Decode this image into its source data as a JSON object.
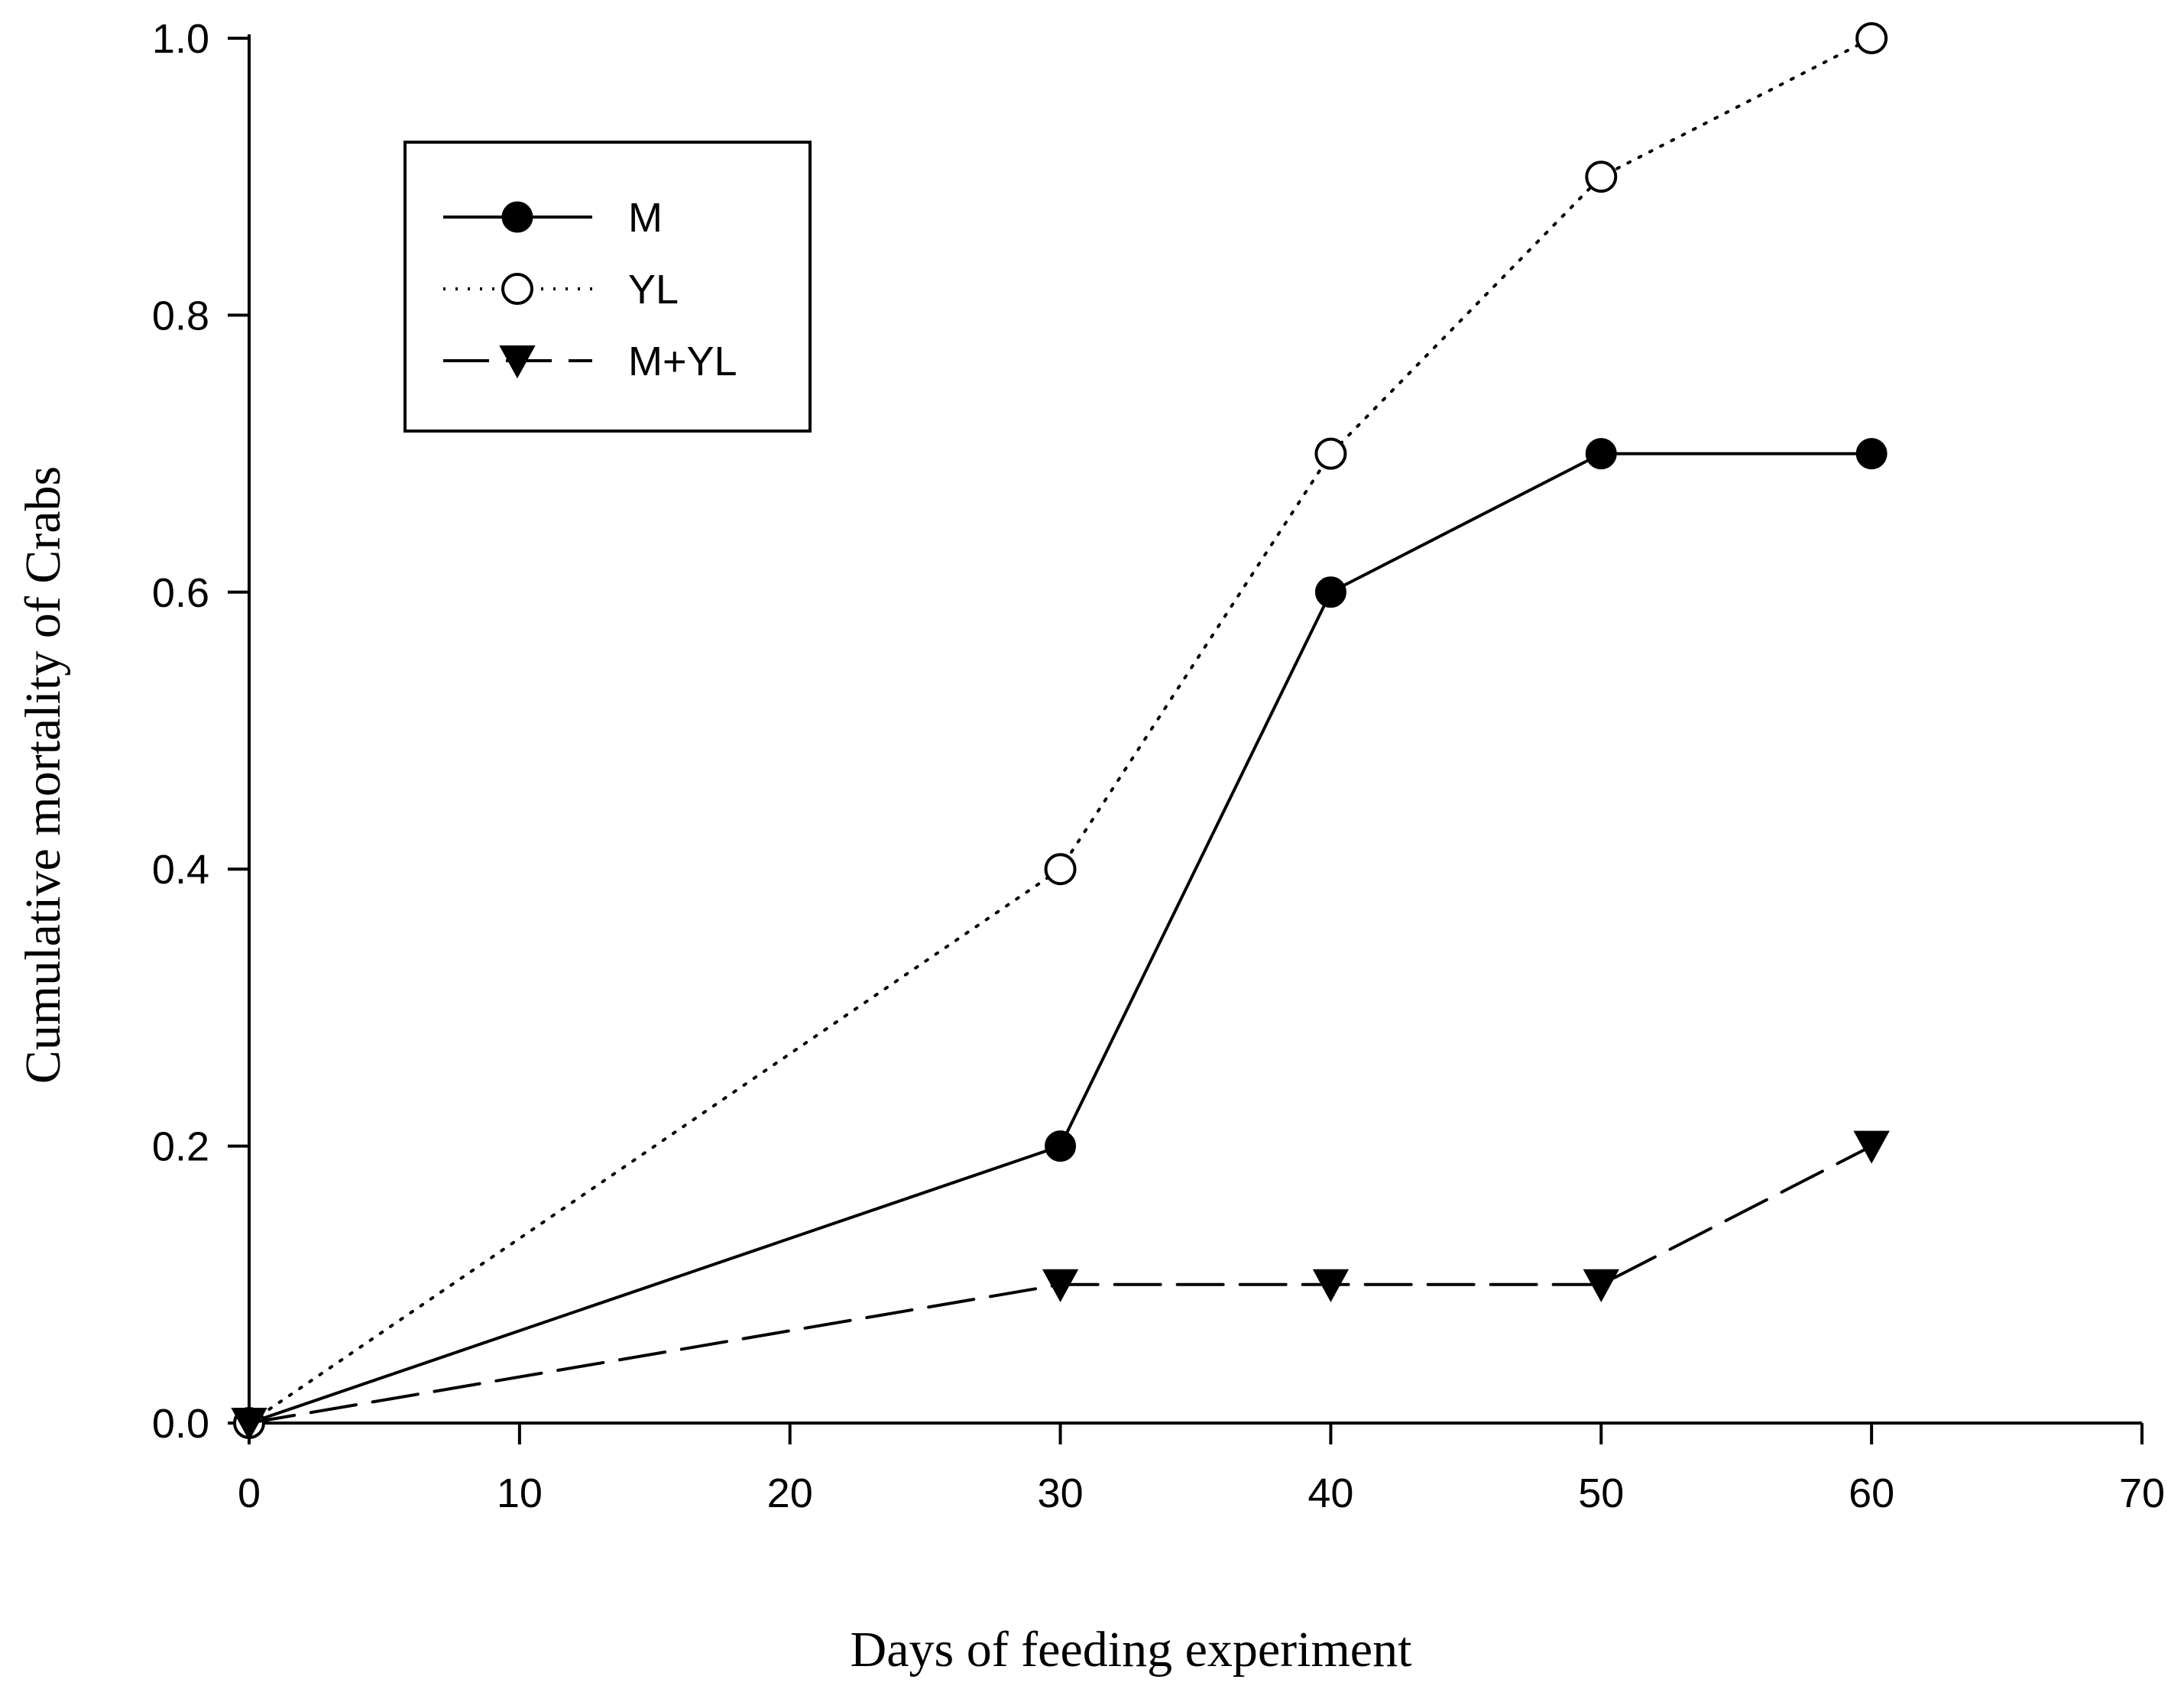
{
  "chart_data": {
    "type": "line",
    "title": "",
    "xlabel": "Days of feeding experiment",
    "ylabel": "Cumulative mortality of Crabs",
    "xlim": [
      0,
      70
    ],
    "ylim": [
      0,
      1.0
    ],
    "xticks": [
      "0",
      "10",
      "20",
      "30",
      "40",
      "50",
      "60",
      "70"
    ],
    "yticks": [
      "0.0",
      "0.2",
      "0.4",
      "0.6",
      "0.8",
      "1.0"
    ],
    "grid": false,
    "legend_position": "top-left",
    "series": [
      {
        "name": "M",
        "line_style": "solid",
        "marker": "filled-circle",
        "x": [
          0,
          30,
          40,
          50,
          60
        ],
        "y": [
          0,
          0.2,
          0.6,
          0.7,
          0.7
        ]
      },
      {
        "name": "YL",
        "line_style": "dotted",
        "marker": "open-circle",
        "x": [
          0,
          30,
          40,
          50,
          60
        ],
        "y": [
          0,
          0.4,
          0.7,
          0.9,
          1.0
        ]
      },
      {
        "name": "M+YL",
        "line_style": "dashed",
        "marker": "filled-triangle-down",
        "x": [
          0,
          30,
          40,
          50,
          60
        ],
        "y": [
          0,
          0.1,
          0.1,
          0.1,
          0.2
        ]
      }
    ],
    "colors": {
      "line": "#000000",
      "background": "#ffffff"
    }
  }
}
